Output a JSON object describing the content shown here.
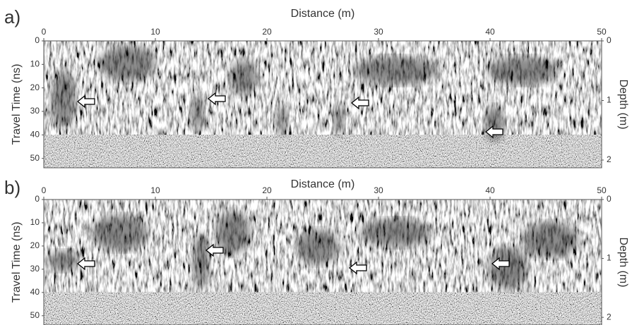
{
  "chart_data": [
    {
      "type": "radargram",
      "panel_label": "a)",
      "xlabel": "Distance (m)",
      "ylabel": "Travel Time (ns)",
      "y2label": "Depth (m)",
      "xlim": [
        0,
        50
      ],
      "xticks": [
        0,
        10,
        20,
        30,
        40,
        50
      ],
      "ylim": [
        0,
        54
      ],
      "yticks": [
        0,
        10,
        20,
        30,
        40,
        50
      ],
      "y2lim": [
        0,
        2.13
      ],
      "y2ticks": [
        0,
        1,
        2
      ]
    },
    {
      "type": "radargram",
      "panel_label": "b)",
      "xlabel": "Distance (m)",
      "ylabel": "Travel Time (ns)",
      "y2label": "Depth (m)",
      "xlim": [
        0,
        50
      ],
      "xticks": [
        0,
        10,
        20,
        30,
        40,
        50
      ],
      "ylim": [
        0,
        54
      ],
      "yticks": [
        0,
        10,
        20,
        30,
        40,
        50
      ],
      "y2lim": [
        0,
        2.13
      ],
      "y2ticks": [
        0,
        1,
        2
      ]
    }
  ]
}
